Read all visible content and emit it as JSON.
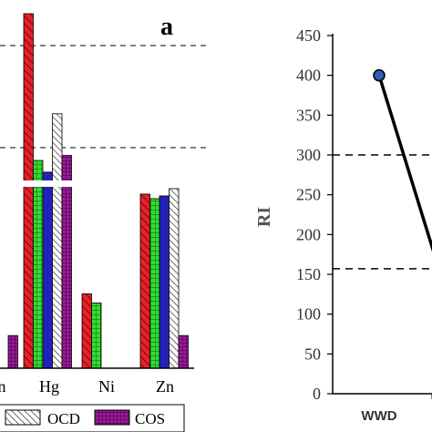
{
  "chart_data": [
    {
      "type": "bar",
      "panel_label": "a",
      "categories": [
        "n",
        "Hg",
        "Ni",
        "Zn"
      ],
      "series": [
        {
          "name": "",
          "color": "#e8202a",
          "pattern": "diagonal",
          "values": [
            null,
            999,
            82,
            192
          ]
        },
        {
          "name": "",
          "color": "#33dd33",
          "pattern": "grid",
          "values": [
            null,
            212,
            72,
            187
          ]
        },
        {
          "name": "",
          "color": "#2222bb",
          "pattern": "solid",
          "values": [
            null,
            205,
            null,
            190
          ]
        },
        {
          "name": "OCD",
          "color": "#ffffff",
          "pattern": "diagonal-black",
          "values": [
            null,
            240,
            null,
            198
          ]
        },
        {
          "name": "COS",
          "color": "#9a1a9a",
          "pattern": "grid",
          "values": [
            36,
            215,
            null,
            36
          ]
        }
      ],
      "reference_lines": [
        280,
        240
      ],
      "axis_break": true,
      "legend": {
        "placement": "bottom",
        "entries": [
          "OCD",
          "COS"
        ]
      }
    },
    {
      "type": "line",
      "ylabel": "RI",
      "ylim": [
        0,
        450
      ],
      "yticks": [
        "0",
        "50",
        "100",
        "150",
        "200",
        "250",
        "300",
        "350",
        "400",
        "450"
      ],
      "categories": [
        "WWD"
      ],
      "series": [
        {
          "name": "",
          "color": "#000000",
          "marker_color": "#2b5fb0",
          "x": [
            "WWD"
          ],
          "values": [
            400
          ]
        }
      ],
      "reference_lines": [
        300,
        157
      ]
    }
  ]
}
